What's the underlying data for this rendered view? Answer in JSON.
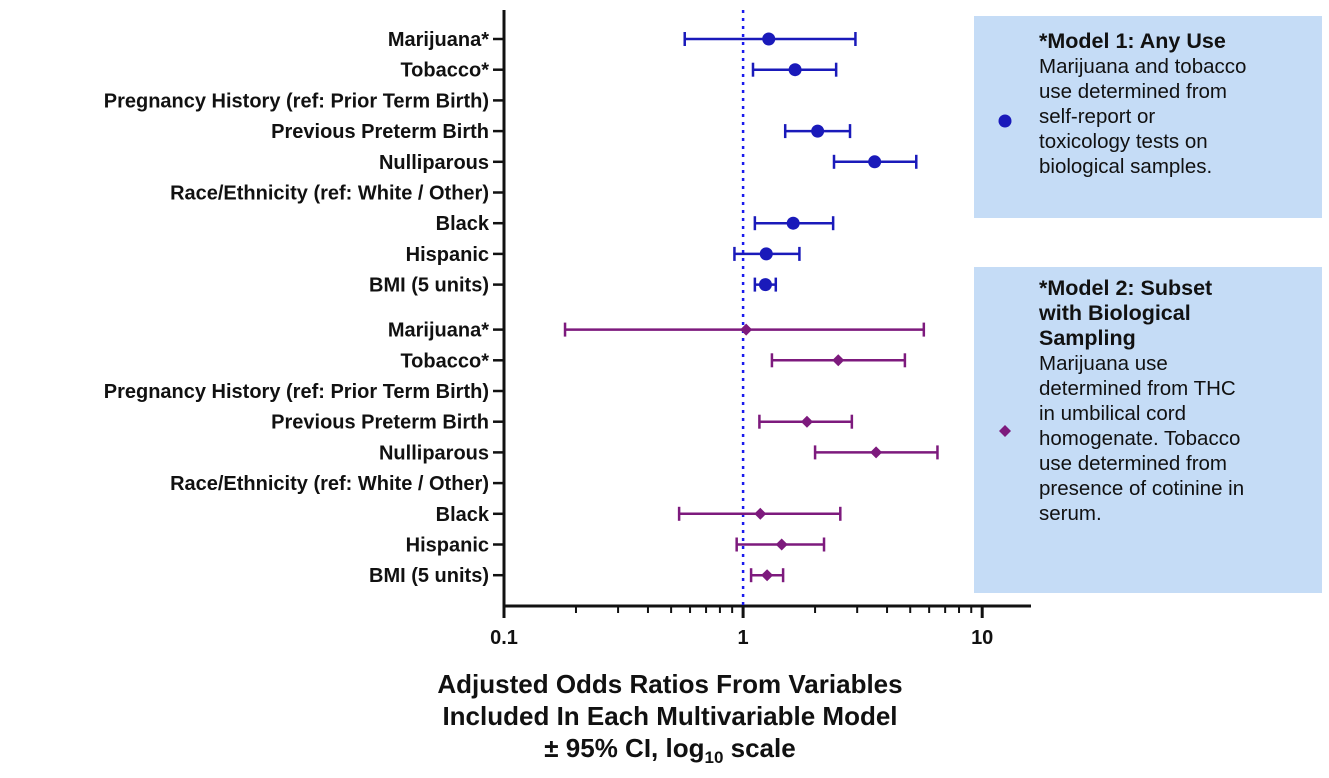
{
  "chart_data": {
    "type": "forest",
    "x_scale": "log10",
    "xlim": [
      0.1,
      16
    ],
    "x_ticks": [
      0.1,
      1,
      10
    ],
    "x_tick_labels": [
      "0.1",
      "1",
      "10"
    ],
    "reference_line": 1,
    "xlabel_lines": [
      "Adjusted Odds Ratios From Variables",
      "Included In Each Multivariable Model",
      "± 95% CI, log",
      " scale"
    ],
    "xlabel_subscript": "10",
    "series": [
      {
        "name": "*Model 1: Any Use",
        "color": "#1a1aba",
        "marker": "circle",
        "rows": [
          {
            "label": "Marijuana*",
            "or": 1.28,
            "lo": 0.57,
            "hi": 2.95
          },
          {
            "label": "Tobacco*",
            "or": 1.65,
            "lo": 1.1,
            "hi": 2.45
          },
          {
            "label": "Pregnancy History (ref: Prior Term Birth)",
            "or": null,
            "lo": null,
            "hi": null
          },
          {
            "label": "Previous Preterm Birth",
            "or": 2.05,
            "lo": 1.5,
            "hi": 2.8
          },
          {
            "label": "Nulliparous",
            "or": 3.55,
            "lo": 2.4,
            "hi": 5.3
          },
          {
            "label": "Race/Ethnicity (ref: White / Other)",
            "or": null,
            "lo": null,
            "hi": null
          },
          {
            "label": "Black",
            "or": 1.62,
            "lo": 1.12,
            "hi": 2.38
          },
          {
            "label": "Hispanic",
            "or": 1.25,
            "lo": 0.92,
            "hi": 1.72
          },
          {
            "label": "BMI (5 units)",
            "or": 1.24,
            "lo": 1.12,
            "hi": 1.37
          }
        ]
      },
      {
        "name": "*Model 2: Subset with Biological Sampling",
        "color": "#7d1a7d",
        "marker": "diamond",
        "rows": [
          {
            "label": "Marijuana*",
            "or": 1.03,
            "lo": 0.18,
            "hi": 5.7
          },
          {
            "label": "Tobacco*",
            "or": 2.5,
            "lo": 1.32,
            "hi": 4.75
          },
          {
            "label": "Pregnancy History (ref: Prior Term Birth)",
            "or": null,
            "lo": null,
            "hi": null
          },
          {
            "label": "Previous Preterm Birth",
            "or": 1.85,
            "lo": 1.17,
            "hi": 2.85
          },
          {
            "label": "Nulliparous",
            "or": 3.6,
            "lo": 2.0,
            "hi": 6.5
          },
          {
            "label": "Race/Ethnicity (ref: White / Other)",
            "or": null,
            "lo": null,
            "hi": null
          },
          {
            "label": "Black",
            "or": 1.18,
            "lo": 0.54,
            "hi": 2.55
          },
          {
            "label": "Hispanic",
            "or": 1.45,
            "lo": 0.94,
            "hi": 2.18
          },
          {
            "label": "BMI (5 units)",
            "or": 1.26,
            "lo": 1.08,
            "hi": 1.47
          }
        ]
      }
    ],
    "legend": [
      {
        "title": "*Model 1: Any Use",
        "text": "Marijuana and tobacco\nuse determined from\nself-report or\ntoxicology tests on\nbiological samples."
      },
      {
        "title": "*Model 2: Subset\nwith Biological\nSampling",
        "text": "Marijuana use\ndetermined from THC\nin umbilical cord\nhomogenate. Tobacco\nuse determined from\npresence of cotinine in\nserum."
      }
    ],
    "grid": false,
    "legend_placement": "right"
  }
}
